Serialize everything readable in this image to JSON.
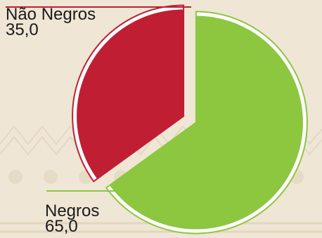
{
  "chart_data": {
    "type": "pie",
    "categories": [
      "Não Negros",
      "Negros"
    ],
    "values": [
      35.0,
      65.0
    ],
    "value_labels": [
      "35,0",
      "65,0"
    ],
    "colors": [
      "#c01f33",
      "#8dc63f"
    ],
    "exploded": true,
    "legend": "none",
    "title": ""
  }
}
